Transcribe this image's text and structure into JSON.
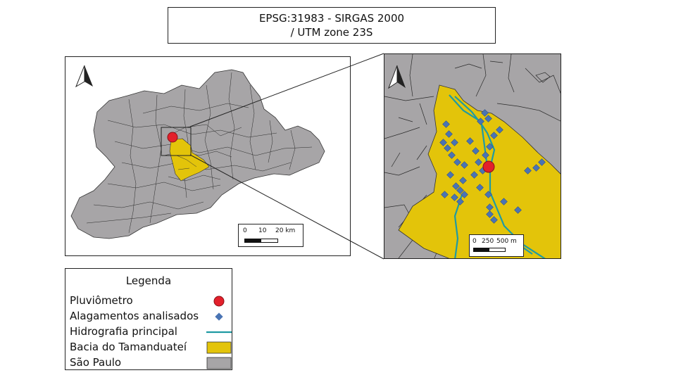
{
  "title": {
    "line1": "EPSG:31983 - SIRGAS 2000",
    "line2": "/ UTM zone 23S"
  },
  "main_map": {
    "north_arrow": "north-arrow-icon",
    "scalebar": {
      "labels": [
        "0",
        "10",
        "20 km"
      ]
    }
  },
  "inset_map": {
    "north_arrow": "north-arrow-icon",
    "scalebar": {
      "labels": [
        "0",
        "250",
        "500 m"
      ]
    }
  },
  "legend": {
    "title": "Legenda",
    "items": [
      {
        "label": "Pluviômetro",
        "symbol": "red-circle",
        "color": "#e3202b"
      },
      {
        "label": "Alagamentos analisados",
        "symbol": "blue-diamond",
        "color": "#4a74b4"
      },
      {
        "label": "Hidrografia principal",
        "symbol": "teal-line",
        "color": "#1f9aa3"
      },
      {
        "label": "Bacia do Tamanduateí",
        "symbol": "yellow-fill",
        "color": "#e3c40a"
      },
      {
        "label": "São Paulo",
        "symbol": "gray-fill",
        "color": "#a7a5a7"
      }
    ]
  },
  "colors": {
    "municipality_fill": "#a7a5a7",
    "boundary": "#333333",
    "basin": "#e3c40a",
    "river": "#1f9aa3",
    "flood": "#4a74b4",
    "gauge": "#e3202b"
  }
}
